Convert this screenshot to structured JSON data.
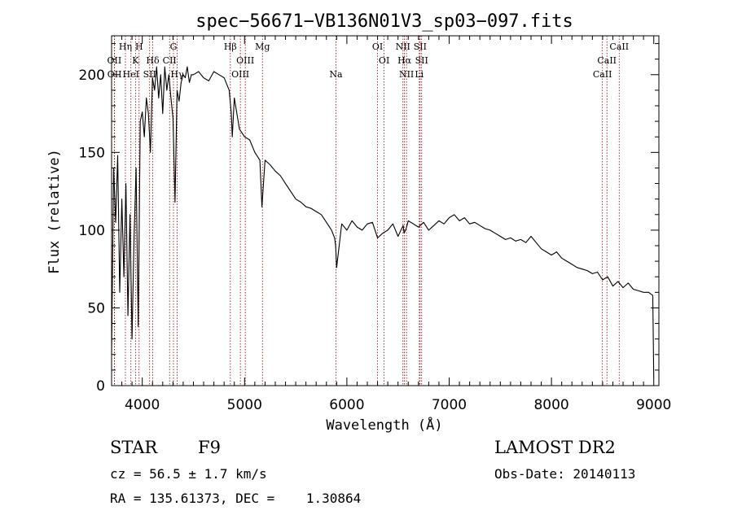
{
  "chart_data": {
    "type": "line",
    "title": "spec−56671−VB136N01V3_sp03−097.fits",
    "xlabel": "Wavelength (Å)",
    "ylabel": "Flux (relative)",
    "xlim": [
      3700,
      9050
    ],
    "ylim": [
      0,
      225
    ],
    "x_ticks": [
      4000,
      5000,
      6000,
      7000,
      8000,
      9000
    ],
    "y_ticks": [
      0,
      50,
      100,
      150,
      200
    ],
    "series": [
      {
        "line_color": "#000000",
        "x": [
          3700,
          3720,
          3740,
          3760,
          3780,
          3800,
          3820,
          3840,
          3860,
          3880,
          3900,
          3920,
          3940,
          3960,
          3980,
          4000,
          4020,
          4040,
          4060,
          4080,
          4100,
          4120,
          4140,
          4160,
          4180,
          4200,
          4220,
          4240,
          4260,
          4280,
          4300,
          4320,
          4340,
          4360,
          4380,
          4400,
          4420,
          4440,
          4460,
          4480,
          4500,
          4550,
          4600,
          4650,
          4700,
          4750,
          4800,
          4850,
          4870,
          4880,
          4900,
          4950,
          5000,
          5050,
          5100,
          5150,
          5170,
          5200,
          5250,
          5300,
          5350,
          5400,
          5450,
          5500,
          5550,
          5600,
          5650,
          5700,
          5750,
          5800,
          5850,
          5880,
          5890,
          5900,
          5950,
          6000,
          6050,
          6100,
          6150,
          6200,
          6250,
          6300,
          6350,
          6400,
          6450,
          6500,
          6550,
          6560,
          6580,
          6600,
          6650,
          6700,
          6750,
          6800,
          6850,
          6900,
          6950,
          7000,
          7050,
          7100,
          7150,
          7200,
          7250,
          7300,
          7350,
          7400,
          7450,
          7500,
          7550,
          7600,
          7650,
          7700,
          7750,
          7800,
          7850,
          7900,
          7950,
          8000,
          8050,
          8100,
          8150,
          8200,
          8250,
          8300,
          8350,
          8400,
          8450,
          8500,
          8550,
          8600,
          8650,
          8700,
          8750,
          8800,
          8850,
          8900,
          8950,
          8990,
          9000
        ],
        "y": [
          20,
          140,
          105,
          148,
          60,
          120,
          70,
          130,
          45,
          110,
          30,
          95,
          140,
          38,
          170,
          176,
          160,
          185,
          175,
          150,
          198,
          190,
          205,
          185,
          200,
          175,
          205,
          190,
          200,
          185,
          172,
          118,
          190,
          183,
          195,
          200,
          198,
          205,
          195,
          200,
          200,
          202,
          198,
          196,
          202,
          200,
          198,
          190,
          175,
          160,
          185,
          165,
          160,
          158,
          150,
          145,
          115,
          145,
          142,
          138,
          135,
          130,
          125,
          120,
          118,
          115,
          114,
          112,
          110,
          105,
          100,
          95,
          90,
          76,
          104,
          100,
          106,
          102,
          100,
          104,
          105,
          95,
          98,
          100,
          104,
          96,
          103,
          98,
          101,
          106,
          104,
          102,
          105,
          100,
          103,
          106,
          104,
          108,
          110,
          106,
          108,
          104,
          105,
          103,
          101,
          100,
          98,
          96,
          94,
          95,
          93,
          94,
          92,
          96,
          92,
          88,
          86,
          84,
          86,
          82,
          80,
          78,
          76,
          75,
          74,
          72,
          73,
          68,
          70,
          64,
          67,
          63,
          66,
          62,
          61,
          60,
          60,
          58,
          5
        ]
      }
    ],
    "lines": [
      {
        "label": "OΙΙ",
        "wavelength": 3727,
        "row": 2
      },
      {
        "label": "OΙΙ",
        "wavelength": 3729,
        "row": 3
      },
      {
        "label": "Hη",
        "wavelength": 3835,
        "row": 1
      },
      {
        "label": "K",
        "wavelength": 3934,
        "row": 2
      },
      {
        "label": "H",
        "wavelength": 3969,
        "row": 1
      },
      {
        "label": "HeΙ",
        "wavelength": 3889,
        "row": 3
      },
      {
        "label": "Hδ",
        "wavelength": 4102,
        "row": 2
      },
      {
        "label": "SΙΙ",
        "wavelength": 4072,
        "row": 3
      },
      {
        "label": "G",
        "wavelength": 4305,
        "row": 1
      },
      {
        "label": "CΙΙ",
        "wavelength": 4267,
        "row": 2
      },
      {
        "label": "Hγ",
        "wavelength": 4341,
        "row": 3
      },
      {
        "label": "Hβ",
        "wavelength": 4861,
        "row": 1
      },
      {
        "label": "OΙΙΙ",
        "wavelength": 5007,
        "row": 2
      },
      {
        "label": "OΙΙΙ",
        "wavelength": 4959,
        "row": 3
      },
      {
        "label": "Mg",
        "wavelength": 5175,
        "row": 1
      },
      {
        "label": "Na",
        "wavelength": 5893,
        "row": 3
      },
      {
        "label": "OΙ",
        "wavelength": 6300,
        "row": 1
      },
      {
        "label": "OΙ",
        "wavelength": 6364,
        "row": 2
      },
      {
        "label": "NΙΙ",
        "wavelength": 6548,
        "row": 1
      },
      {
        "label": "Hα",
        "wavelength": 6563,
        "row": 2
      },
      {
        "label": "NΙΙ",
        "wavelength": 6583,
        "row": 3
      },
      {
        "label": "SΙΙ",
        "wavelength": 6716,
        "row": 1
      },
      {
        "label": "SΙΙ",
        "wavelength": 6731,
        "row": 2
      },
      {
        "label": "Li",
        "wavelength": 6708,
        "row": 3
      },
      {
        "label": "CaΙΙ",
        "wavelength": 8662,
        "row": 1
      },
      {
        "label": "CaΙΙ",
        "wavelength": 8542,
        "row": 2
      },
      {
        "label": "CaΙΙ",
        "wavelength": 8498,
        "row": 3
      }
    ],
    "line_color": "#8b0000",
    "grid": false,
    "legend": "none"
  },
  "info": {
    "class": "STAR",
    "subclass": "F9",
    "cz": "cz = 56.5 ± 1.7 km/s",
    "radec": "RA = 135.61373, DEC =    1.30864",
    "survey": "LAMOST DR2",
    "obs_date": "Obs-Date: 20140113"
  }
}
